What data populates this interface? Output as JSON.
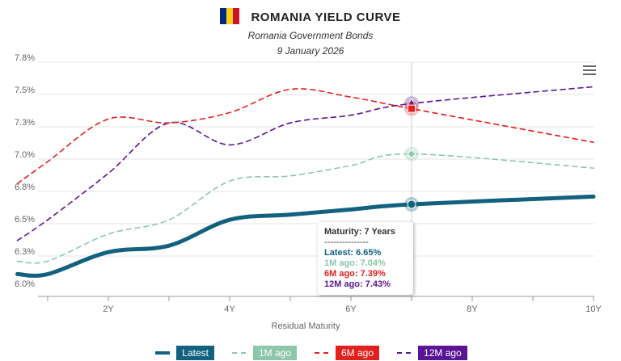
{
  "header": {
    "title": "ROMANIA YIELD CURVE",
    "subtitle": "Romania Government Bonds",
    "date": "9 January 2026",
    "flag_colors": [
      "#002B7F",
      "#FCD116",
      "#CE1126"
    ]
  },
  "tooltip": {
    "title": "Maturity: 7 Years",
    "separator": "---------------",
    "lines": [
      "Latest: 6.65%",
      "1M ago: 7.04%",
      "6M ago: 7.39%",
      "12M ago: 7.43%"
    ]
  },
  "chart_data": {
    "type": "line",
    "xlabel": "Residual Maturity",
    "x": [
      0.5,
      1,
      2,
      3,
      4,
      5,
      6,
      7,
      10
    ],
    "x_ticks": [
      {
        "v": 2,
        "label": "2Y"
      },
      {
        "v": 4,
        "label": "4Y"
      },
      {
        "v": 6,
        "label": "6Y"
      },
      {
        "v": 8,
        "label": "8Y"
      },
      {
        "v": 10,
        "label": "10Y"
      }
    ],
    "y_ticks": [
      "6.0%",
      "6.3%",
      "6.5%",
      "6.8%",
      "7.0%",
      "7.3%",
      "7.5%",
      "7.8%"
    ],
    "ylim": [
      6.0,
      7.75
    ],
    "grid": true,
    "legend": "bottom",
    "highlight_x": 7,
    "series": [
      {
        "name": "Latest",
        "color": "#12617F",
        "dashed": false,
        "values": [
          6.11,
          6.11,
          6.28,
          6.33,
          6.53,
          6.57,
          6.61,
          6.65,
          6.71
        ]
      },
      {
        "name": "1M ago",
        "color": "#8CC7AA",
        "dashed": true,
        "values": [
          6.21,
          6.21,
          6.42,
          6.53,
          6.83,
          6.87,
          6.95,
          7.04,
          6.93
        ]
      },
      {
        "name": "6M ago",
        "color": "#E3201E",
        "dashed": true,
        "values": [
          6.81,
          6.98,
          7.31,
          7.28,
          7.36,
          7.54,
          7.48,
          7.39,
          7.13
        ]
      },
      {
        "name": "12M ago",
        "color": "#5B1496",
        "dashed": true,
        "values": [
          6.37,
          6.53,
          6.89,
          7.28,
          7.11,
          7.28,
          7.34,
          7.43,
          7.56
        ]
      }
    ]
  }
}
